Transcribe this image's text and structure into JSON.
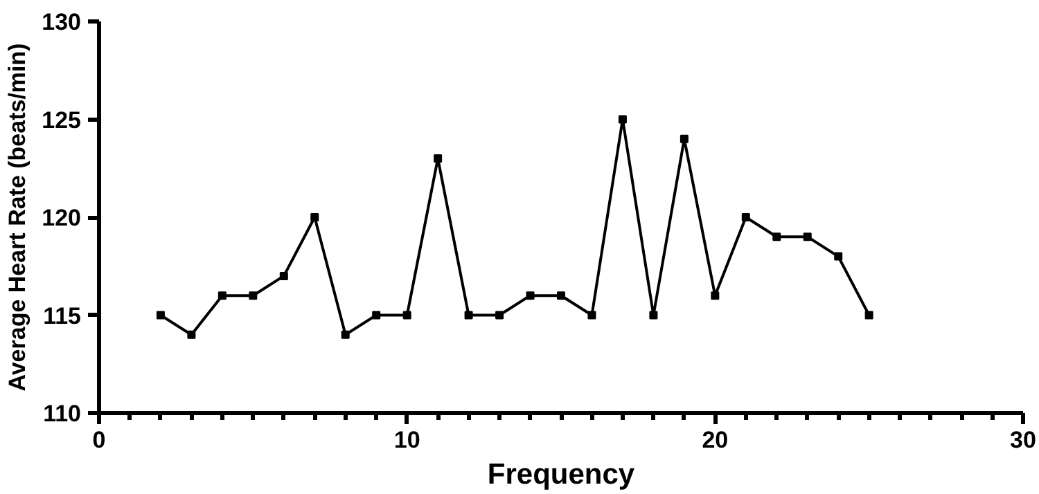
{
  "chart_data": {
    "type": "line",
    "xlabel": "Frequency",
    "ylabel": "Average Heart Rate (beats/min)",
    "x": [
      2,
      3,
      4,
      5,
      6,
      7,
      8,
      9,
      10,
      11,
      12,
      13,
      14,
      15,
      16,
      17,
      18,
      19,
      20,
      21,
      22,
      23,
      24,
      25
    ],
    "series": [
      {
        "color": "#000000",
        "values": [
          115,
          114,
          116,
          116,
          117,
          120,
          114,
          115,
          115,
          123,
          115,
          115,
          116,
          116,
          115,
          125,
          115,
          124,
          116,
          120,
          119,
          119,
          118,
          115
        ]
      }
    ],
    "xlim": [
      0,
      30
    ],
    "xticks": [
      0,
      10,
      20,
      30
    ],
    "ylim": [
      110,
      130
    ],
    "yticks": [
      110,
      115,
      120,
      125,
      130
    ],
    "grid": false,
    "marker": "square",
    "line_style": "solid"
  }
}
